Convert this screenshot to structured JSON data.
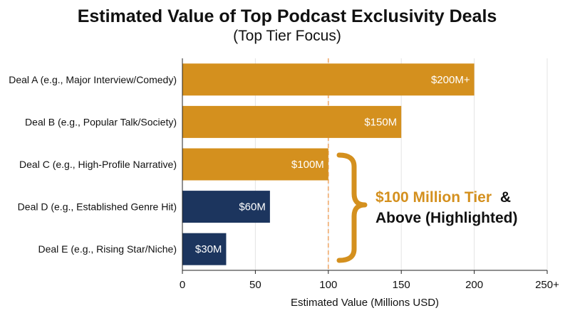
{
  "chart_data": {
    "type": "bar",
    "orientation": "horizontal",
    "title": "Estimated Value of Top Podcast Exclusivity Deals",
    "subtitle": "(Top Tier Focus)",
    "xlabel": "Estimated Value (Millions USD)",
    "ylabel": "",
    "xlim": [
      0,
      250
    ],
    "x_ticks": [
      0,
      50,
      100,
      150,
      200,
      250
    ],
    "x_tick_labels": [
      "0",
      "50",
      "100",
      "150",
      "200",
      "250+"
    ],
    "grid": "vertical",
    "categories": [
      "Deal A (e.g., Major Interview/Comedy)",
      "Deal B (e.g., Popular Talk/Society)",
      "Deal C (e.g., High-Profile Narrative)",
      "Deal D (e.g., Established Genre Hit)",
      "Deal E (e.g., Rising Star/Niche)"
    ],
    "values": [
      200,
      150,
      100,
      60,
      30
    ],
    "data_labels": [
      "$200M+",
      "$150M",
      "$100M",
      "$60M",
      "$30M"
    ],
    "highlight_threshold": 100,
    "colors": {
      "highlight": "#D4901E",
      "other": "#1C355E",
      "threshold_line": "#F1B27A",
      "grid": "#E3E3E3"
    },
    "annotation": {
      "line1_accent": "$100 Million Tier",
      "line1_rest": "&",
      "line2": "Above (Highlighted)",
      "accent_color": "#D4901E",
      "text_color": "#111111"
    }
  }
}
